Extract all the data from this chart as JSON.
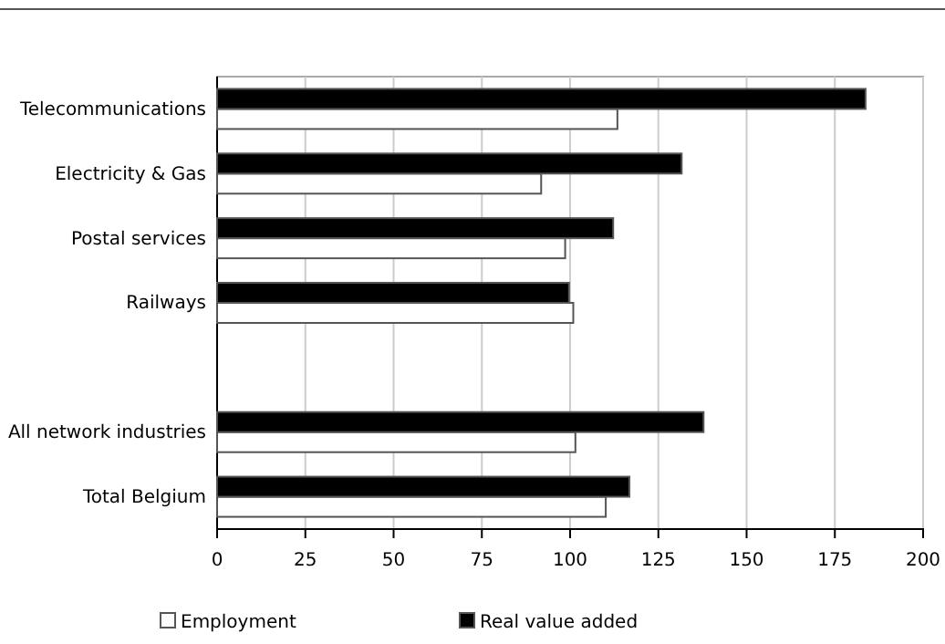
{
  "chart_data": {
    "type": "bar",
    "orientation": "horizontal",
    "categories": [
      "Telecommunications",
      "Electricity & Gas",
      "Postal services",
      "Railways",
      null,
      "All network industries",
      "Total Belgium"
    ],
    "series": [
      {
        "name": "Employment",
        "color": "#ffffff",
        "values": [
          113.4,
          91.8,
          98.6,
          100.9,
          null,
          101.5,
          110.1
        ]
      },
      {
        "name": "Real value added",
        "color": "#000000",
        "values": [
          183.7,
          131.6,
          112.2,
          99.7,
          null,
          137.8,
          116.8
        ]
      }
    ],
    "xlim": [
      0,
      200
    ],
    "xticks": [
      0,
      25,
      50,
      75,
      100,
      125,
      150,
      175,
      200
    ],
    "grid": "x",
    "legend": "bottom"
  }
}
